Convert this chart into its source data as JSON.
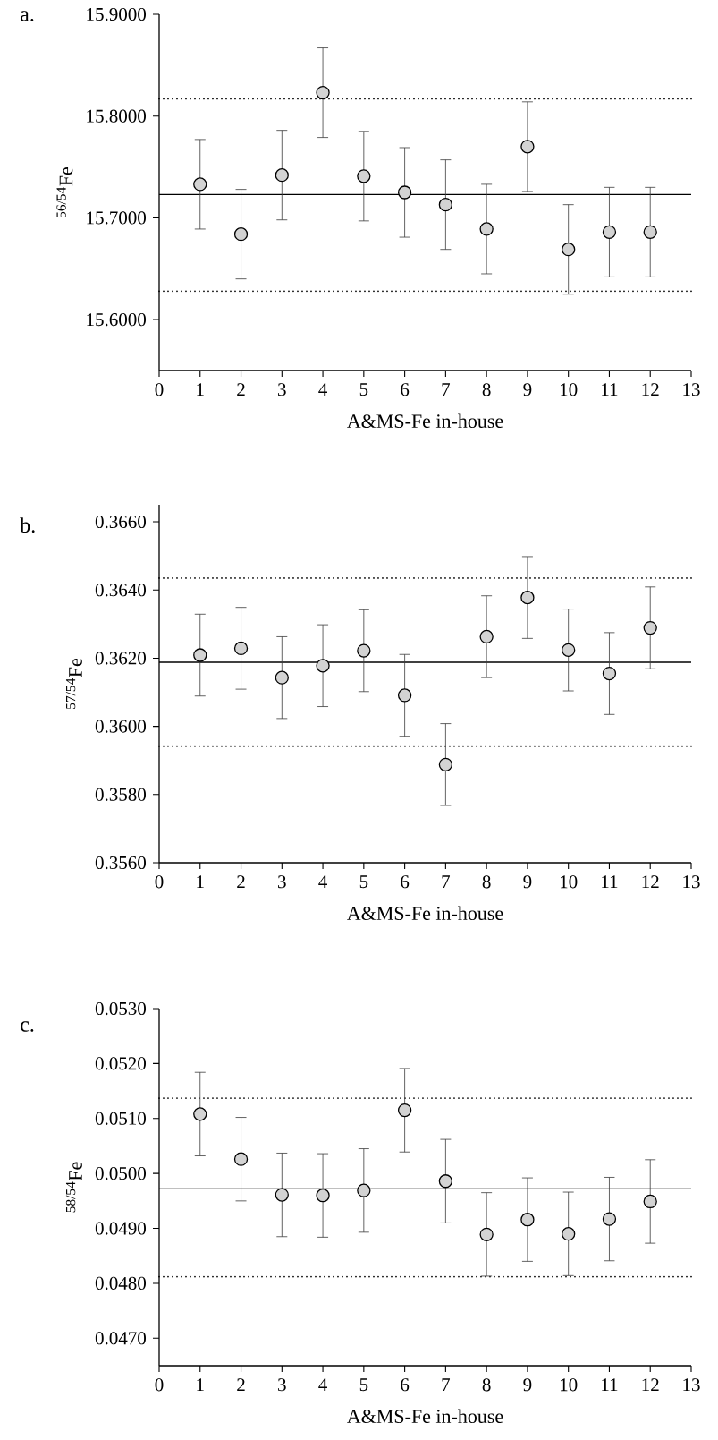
{
  "chart_data": [
    {
      "type": "scatter",
      "title": "a.",
      "xlabel": "A&MS-Fe in-house",
      "ylabel": "$^{56/54}$Fe",
      "marker": "circle",
      "color": "#d3d3d3",
      "x": [
        1,
        2,
        3,
        4,
        5,
        6,
        7,
        8,
        9,
        10,
        11,
        12
      ],
      "values": [
        15.733,
        15.684,
        15.742,
        15.823,
        15.741,
        15.725,
        15.713,
        15.689,
        15.77,
        15.669,
        15.686,
        15.686
      ],
      "errors": [
        0.044,
        0.044,
        0.044,
        0.044,
        0.044,
        0.044,
        0.044,
        0.044,
        0.044,
        0.044,
        0.044,
        0.044
      ],
      "xlim": [
        0,
        13
      ],
      "xticks": [
        0,
        1,
        2,
        3,
        4,
        5,
        6,
        7,
        8,
        9,
        10,
        11,
        12,
        13
      ],
      "ylim": [
        15.55,
        15.9
      ],
      "yticks": [
        {
          "value": 15.6,
          "label": "15.6000"
        },
        {
          "value": 15.7,
          "label": "15.7000"
        },
        {
          "value": 15.8,
          "label": "15.8000"
        },
        {
          "value": 15.9,
          "label": "15.9000"
        }
      ],
      "ref_lines": [
        {
          "axis": "y",
          "value": 15.723,
          "line_style": "solid",
          "color": "#000000"
        },
        {
          "axis": "y",
          "value": 15.817,
          "line_style": "dotted",
          "color": "#000000"
        },
        {
          "axis": "y",
          "value": 15.628,
          "line_style": "dotted",
          "color": "#000000"
        }
      ]
    },
    {
      "type": "scatter",
      "title": "b.",
      "xlabel": "A&MS-Fe in-house",
      "ylabel": "$^{57/54}$Fe",
      "marker": "circle",
      "color": "#d3d3d3",
      "x": [
        1,
        2,
        3,
        4,
        5,
        6,
        7,
        8,
        9,
        10,
        11,
        12
      ],
      "values": [
        0.36209,
        0.36229,
        0.36143,
        0.36178,
        0.36222,
        0.36091,
        0.35888,
        0.36263,
        0.36378,
        0.36224,
        0.36155,
        0.36289
      ],
      "errors": [
        0.0012,
        0.0012,
        0.0012,
        0.0012,
        0.0012,
        0.0012,
        0.0012,
        0.0012,
        0.0012,
        0.0012,
        0.0012,
        0.0012
      ],
      "xlim": [
        0,
        13
      ],
      "xticks": [
        0,
        1,
        2,
        3,
        4,
        5,
        6,
        7,
        8,
        9,
        10,
        11,
        12,
        13
      ],
      "ylim": [
        0.356,
        0.3665
      ],
      "yticks": [
        {
          "value": 0.356,
          "label": "0.3560"
        },
        {
          "value": 0.358,
          "label": "0.3580"
        },
        {
          "value": 0.36,
          "label": "0.3600"
        },
        {
          "value": 0.362,
          "label": "0.3620"
        },
        {
          "value": 0.364,
          "label": "0.3640"
        },
        {
          "value": 0.366,
          "label": "0.3660"
        }
      ],
      "ref_lines": [
        {
          "axis": "y",
          "value": 0.36188,
          "line_style": "solid",
          "color": "#000000"
        },
        {
          "axis": "y",
          "value": 0.36435,
          "line_style": "dotted",
          "color": "#000000"
        },
        {
          "axis": "y",
          "value": 0.35942,
          "line_style": "dotted",
          "color": "#000000"
        }
      ]
    },
    {
      "type": "scatter",
      "title": "c.",
      "xlabel": "A&MS-Fe in-house",
      "ylabel": "$^{58/54}$Fe",
      "marker": "circle",
      "color": "#d3d3d3",
      "x": [
        1,
        2,
        3,
        4,
        5,
        6,
        7,
        8,
        9,
        10,
        11,
        12
      ],
      "values": [
        0.05108,
        0.05026,
        0.04961,
        0.0496,
        0.04969,
        0.05115,
        0.04986,
        0.04889,
        0.04916,
        0.0489,
        0.04917,
        0.04949
      ],
      "errors": [
        0.00076,
        0.00076,
        0.00076,
        0.00076,
        0.00076,
        0.00076,
        0.00076,
        0.00076,
        0.00076,
        0.00076,
        0.00076,
        0.00076
      ],
      "xlim": [
        0,
        13
      ],
      "xticks": [
        0,
        1,
        2,
        3,
        4,
        5,
        6,
        7,
        8,
        9,
        10,
        11,
        12,
        13
      ],
      "ylim": [
        0.0465,
        0.053
      ],
      "yticks": [
        {
          "value": 0.047,
          "label": "0.0470"
        },
        {
          "value": 0.048,
          "label": "0.0480"
        },
        {
          "value": 0.049,
          "label": "0.0490"
        },
        {
          "value": 0.05,
          "label": "0.0500"
        },
        {
          "value": 0.051,
          "label": "0.0510"
        },
        {
          "value": 0.052,
          "label": "0.0520"
        },
        {
          "value": 0.053,
          "label": "0.0530"
        }
      ],
      "ref_lines": [
        {
          "axis": "y",
          "value": 0.04972,
          "line_style": "solid",
          "color": "#000000"
        },
        {
          "axis": "y",
          "value": 0.05137,
          "line_style": "dotted",
          "color": "#000000"
        },
        {
          "axis": "y",
          "value": 0.04812,
          "line_style": "dotted",
          "color": "#000000"
        }
      ]
    }
  ]
}
